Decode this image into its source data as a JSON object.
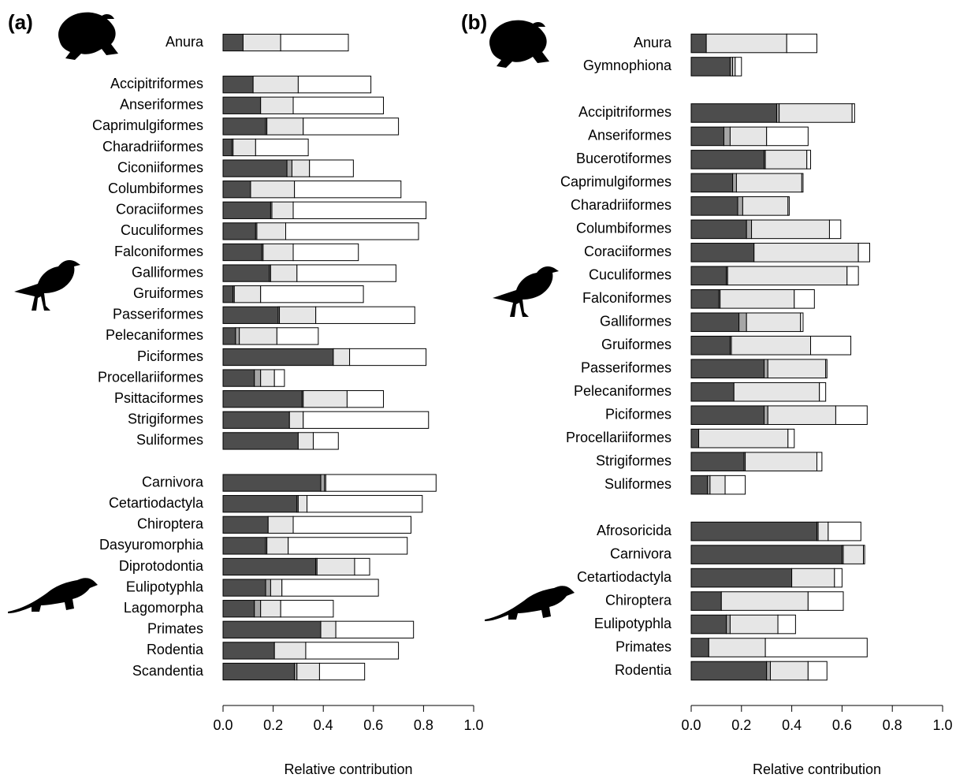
{
  "chart_data": [
    {
      "type": "bar",
      "label": "(a)",
      "xlabel": "Relative contribution",
      "categories": [
        "Anura",
        null,
        "Accipitriformes",
        "Anseriformes",
        "Caprimulgiformes",
        "Charadriiformes",
        "Ciconiiformes",
        "Columbiformes",
        "Coraciiformes",
        "Cuculiformes",
        "Falconiformes",
        "Galliformes",
        "Gruiformes",
        "Passeriformes",
        "Pelecaniformes",
        "Piciformes",
        "Procellariiformes",
        "Psittaciformes",
        "Strigiformes",
        "Suliformes",
        null,
        "Carnivora",
        "Cetartiodactyla",
        "Chiroptera",
        "Dasyuromorphia",
        "Diprotodontia",
        "Eulipotyphla",
        "Lagomorpha",
        "Primates",
        "Rodentia",
        "Scandentia"
      ],
      "series": [
        {
          "color": "#4d4d4d",
          "values": [
            0.08,
            null,
            0.12,
            0.15,
            0.17,
            0.035,
            0.255,
            0.11,
            0.19,
            0.13,
            0.155,
            0.185,
            0.04,
            0.22,
            0.05,
            0.44,
            0.125,
            0.315,
            0.265,
            0.3,
            null,
            0.39,
            0.295,
            0.18,
            0.17,
            0.37,
            0.17,
            0.125,
            0.39,
            0.205,
            0.285
          ]
        },
        {
          "color": "#a6a6a6",
          "values": [
            0,
            null,
            0,
            0,
            0.005,
            0.005,
            0.02,
            0,
            0.005,
            0.005,
            0.005,
            0.005,
            0.005,
            0.005,
            0.015,
            0,
            0.025,
            0.005,
            0,
            0,
            null,
            0.015,
            0.005,
            0,
            0.005,
            0.005,
            0.02,
            0.025,
            0,
            0,
            0.01
          ]
        },
        {
          "color": "#e6e6e6",
          "values": [
            0.15,
            null,
            0.18,
            0.13,
            0.145,
            0.09,
            0.07,
            0.175,
            0.085,
            0.115,
            0.12,
            0.105,
            0.105,
            0.145,
            0.15,
            0.065,
            0.055,
            0.175,
            0.055,
            0.06,
            null,
            0.005,
            0.035,
            0.1,
            0.085,
            0.15,
            0.045,
            0.08,
            0.06,
            0.125,
            0.09
          ]
        },
        {
          "color": "#ffffff",
          "values": [
            0.27,
            null,
            0.29,
            0.36,
            0.38,
            0.21,
            0.175,
            0.425,
            0.53,
            0.53,
            0.26,
            0.395,
            0.41,
            0.395,
            0.165,
            0.305,
            0.04,
            0.145,
            0.5,
            0.1,
            null,
            0.44,
            0.46,
            0.47,
            0.475,
            0.06,
            0.385,
            0.21,
            0.31,
            0.37,
            0.18
          ]
        }
      ],
      "xlim": [
        0,
        1
      ],
      "xticks": [
        {
          "value": 0,
          "label": "0.0"
        },
        0.2,
        0.4,
        0.6,
        0.8,
        {
          "value": 1,
          "label": "1.0"
        }
      ]
    },
    {
      "type": "bar",
      "label": "(b)",
      "xlabel": "Relative contribution",
      "categories": [
        "Anura",
        "Gymnophiona",
        null,
        "Accipitriformes",
        "Anseriformes",
        "Bucerotiformes",
        "Caprimulgiformes",
        "Charadriiformes",
        "Columbiformes",
        "Coraciiformes",
        "Cuculiformes",
        "Falconiformes",
        "Galliformes",
        "Gruiformes",
        "Passeriformes",
        "Pelecaniformes",
        "Piciformes",
        "Procellariiformes",
        "Strigiformes",
        "Suliformes",
        null,
        "Afrosoricida",
        "Carnivora",
        "Cetartiodactyla",
        "Chiroptera",
        "Eulipotyphla",
        "Primates",
        "Rodentia"
      ],
      "series": [
        {
          "color": "#4d4d4d",
          "values": [
            0.06,
            0.155,
            null,
            0.34,
            0.13,
            0.29,
            0.165,
            0.185,
            0.22,
            0.25,
            0.14,
            0.11,
            0.19,
            0.155,
            0.29,
            0.17,
            0.29,
            0.03,
            0.21,
            0.065,
            null,
            0.5,
            0.6,
            0.4,
            0.12,
            0.14,
            0.07,
            0.3
          ]
        },
        {
          "color": "#a6a6a6",
          "values": [
            0,
            0.01,
            null,
            0.01,
            0.025,
            0.005,
            0.015,
            0.02,
            0.02,
            0,
            0.005,
            0.005,
            0.03,
            0.005,
            0.015,
            0,
            0.015,
            0,
            0.005,
            0.01,
            null,
            0.005,
            0.005,
            0,
            0,
            0.015,
            0,
            0.015
          ]
        },
        {
          "color": "#e6e6e6",
          "values": [
            0.32,
            0.01,
            null,
            0.29,
            0.145,
            0.165,
            0.26,
            0.18,
            0.31,
            0.415,
            0.475,
            0.295,
            0.215,
            0.315,
            0.23,
            0.34,
            0.27,
            0.355,
            0.285,
            0.06,
            null,
            0.04,
            0.08,
            0.17,
            0.345,
            0.19,
            0.225,
            0.15
          ]
        },
        {
          "color": "#ffffff",
          "values": [
            0.12,
            0.025,
            null,
            0.01,
            0.165,
            0.015,
            0.005,
            0.005,
            0.045,
            0.045,
            0.045,
            0.08,
            0.01,
            0.16,
            0.005,
            0.025,
            0.125,
            0.025,
            0.02,
            0.08,
            null,
            0.13,
            0.005,
            0.03,
            0.14,
            0.07,
            0.405,
            0.075
          ]
        }
      ],
      "xlim": [
        0,
        1
      ],
      "xticks": [
        {
          "value": 0,
          "label": "0.0"
        },
        0.2,
        0.4,
        0.6,
        0.8,
        {
          "value": 1,
          "label": "1.0"
        }
      ]
    }
  ]
}
